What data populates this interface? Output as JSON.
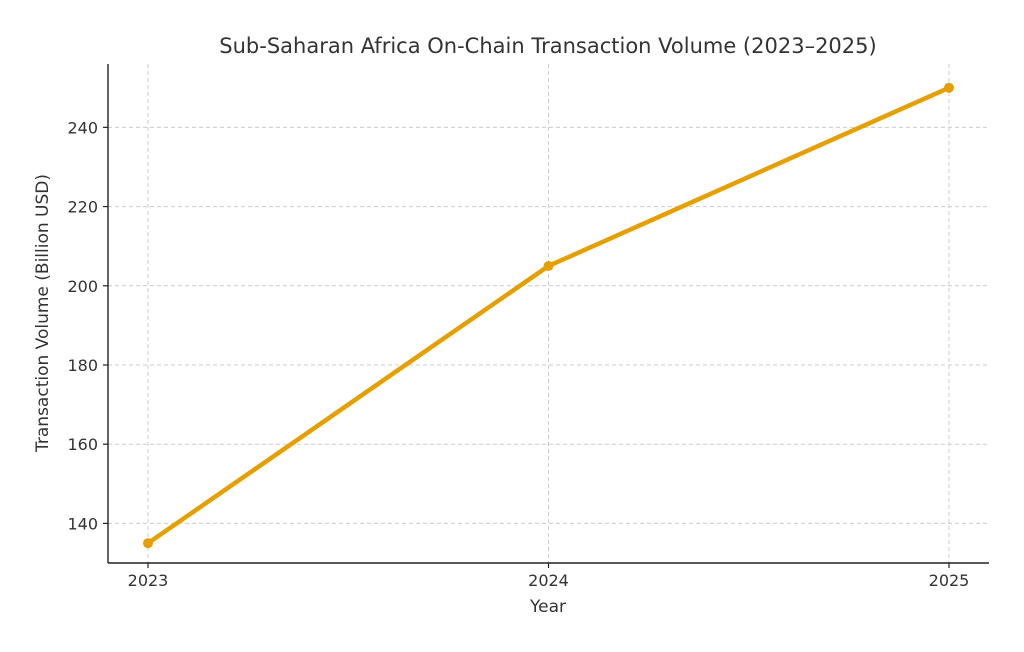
{
  "chart_data": {
    "type": "line",
    "title": "Sub-Saharan Africa On-Chain Transaction Volume (2023–2025)",
    "xlabel": "Year",
    "ylabel": "Transaction Volume (Billion USD)",
    "categories": [
      "2023",
      "2024",
      "2025"
    ],
    "series": [
      {
        "name": "Transaction Volume",
        "values": [
          135,
          205,
          250
        ],
        "color": "#e69f00"
      }
    ],
    "ylim": [
      130,
      256
    ],
    "yticks": [
      140,
      160,
      180,
      200,
      220,
      240
    ],
    "grid": true,
    "legend": "none"
  }
}
